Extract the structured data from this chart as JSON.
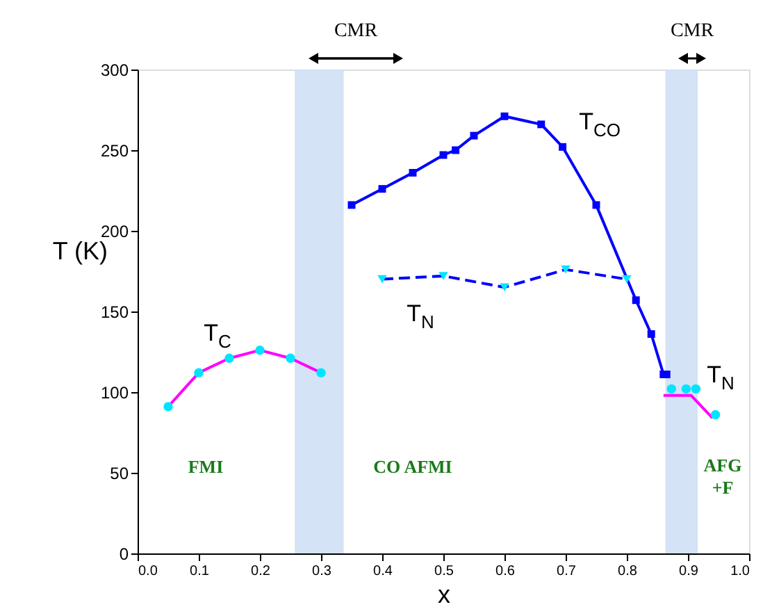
{
  "chart_data": {
    "type": "line",
    "xlabel": "x",
    "ylabel": "T (K)",
    "xlim": [
      0.0,
      1.0
    ],
    "xticks": [
      {
        "value": 0.0,
        "label": "0.0"
      },
      0.1,
      0.2,
      0.3,
      0.4,
      0.5,
      0.6,
      0.7,
      0.8,
      0.9,
      {
        "value": 1.0,
        "label": "1.0"
      }
    ],
    "ylim": [
      0,
      300
    ],
    "yticks": [
      0,
      50,
      100,
      150,
      200,
      250,
      300
    ],
    "grid": false,
    "series": [
      {
        "color": "#ff00ff",
        "marker": "none",
        "line_style": "solid",
        "x": [
          0.05,
          0.1,
          0.15,
          0.2,
          0.25,
          0.3
        ],
        "values": [
          91,
          112,
          121,
          126,
          121,
          112
        ]
      },
      {
        "type": "scatter",
        "color": "#00e5ff",
        "marker": "circle",
        "x": [
          0.05,
          0.1,
          0.15,
          0.2,
          0.25,
          0.3
        ],
        "values": [
          91,
          112,
          121,
          126,
          121,
          112
        ]
      },
      {
        "color": "#0000ff",
        "marker": "square",
        "line_style": "solid",
        "x": [
          0.35,
          0.4,
          0.45,
          0.5,
          0.52,
          0.55,
          0.6,
          0.66,
          0.695,
          0.75,
          0.815,
          0.84,
          0.86,
          0.865
        ],
        "values": [
          216,
          226,
          236,
          247,
          250,
          259,
          271,
          266,
          252,
          216,
          157,
          136,
          111,
          111
        ]
      },
      {
        "color": "#0000ff",
        "marker": "none",
        "line_style": "dashed",
        "x": [
          0.4,
          0.5,
          0.6,
          0.7,
          0.8
        ],
        "values": [
          170,
          172,
          165,
          176,
          170
        ]
      },
      {
        "type": "scatter",
        "color": "#00e5ff",
        "marker": "triangle",
        "x": [
          0.4,
          0.5,
          0.6,
          0.7,
          0.8
        ],
        "values": [
          170,
          172,
          165,
          176,
          170
        ]
      },
      {
        "color": "#ff00ff",
        "marker": "none",
        "line_style": "solid",
        "x": [
          0.86,
          0.905,
          0.94
        ],
        "values": [
          98,
          98,
          84
        ]
      },
      {
        "type": "scatter",
        "color": "#00e5ff",
        "marker": "circle",
        "x": [
          0.873,
          0.897,
          0.913,
          0.945
        ],
        "values": [
          102,
          102,
          102,
          86
        ]
      }
    ],
    "bands": [
      {
        "axis": "x",
        "from": 0.257,
        "to": 0.337,
        "color": "#cfe0f5"
      },
      {
        "axis": "x",
        "from": 0.863,
        "to": 0.916,
        "color": "#cfe0f5"
      }
    ],
    "annotations": [
      "T$_{C}$",
      "T$_{CO}$",
      "T$_{N}$",
      "T$_{N}$",
      "FMI",
      "CO AFMI",
      "AFG +F",
      "CMR",
      "CMR"
    ]
  }
}
